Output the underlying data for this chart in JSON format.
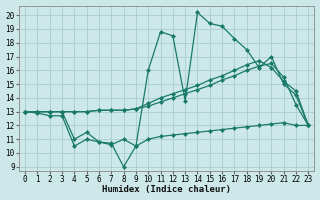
{
  "title": "",
  "xlabel": "Humidex (Indice chaleur)",
  "bg_color": "#cce8e8",
  "grid_color": "#aacccc",
  "line_color": "#1a7a6a",
  "xlim": [
    -0.5,
    23.5
  ],
  "ylim": [
    8.7,
    20.7
  ],
  "xticks": [
    0,
    1,
    2,
    3,
    4,
    5,
    6,
    7,
    8,
    9,
    10,
    11,
    12,
    13,
    14,
    15,
    16,
    17,
    18,
    19,
    20,
    21,
    22,
    23
  ],
  "yticks": [
    9,
    10,
    11,
    12,
    13,
    14,
    15,
    16,
    17,
    18,
    19,
    20
  ],
  "series": [
    [
      13,
      12.9,
      12.7,
      12.7,
      10.5,
      11.0,
      10.8,
      10.7,
      9.0,
      10.5,
      16.0,
      18.8,
      18.5,
      13.8,
      20.2,
      19.4,
      19.2,
      18.3,
      17.5,
      16.2,
      17.0,
      15.0,
      14.2,
      12.0
    ],
    [
      13,
      13,
      13,
      13,
      13,
      13.0,
      13.1,
      13.1,
      13.1,
      13.2,
      13.6,
      14.0,
      14.3,
      14.6,
      14.9,
      15.3,
      15.6,
      16.0,
      16.4,
      16.7,
      16.2,
      15.2,
      14.5,
      12.0
    ],
    [
      13,
      13,
      13,
      13,
      13,
      13.0,
      13.1,
      13.1,
      13.1,
      13.2,
      13.4,
      13.7,
      14.0,
      14.3,
      14.6,
      14.9,
      15.3,
      15.6,
      16.0,
      16.3,
      16.5,
      15.5,
      13.5,
      12.0
    ],
    [
      13,
      13,
      13,
      13,
      11.0,
      11.5,
      10.8,
      10.6,
      11.0,
      10.5,
      11.0,
      11.2,
      11.3,
      11.4,
      11.5,
      11.6,
      11.7,
      11.8,
      11.9,
      12.0,
      12.1,
      12.2,
      12.0,
      12.0
    ]
  ]
}
